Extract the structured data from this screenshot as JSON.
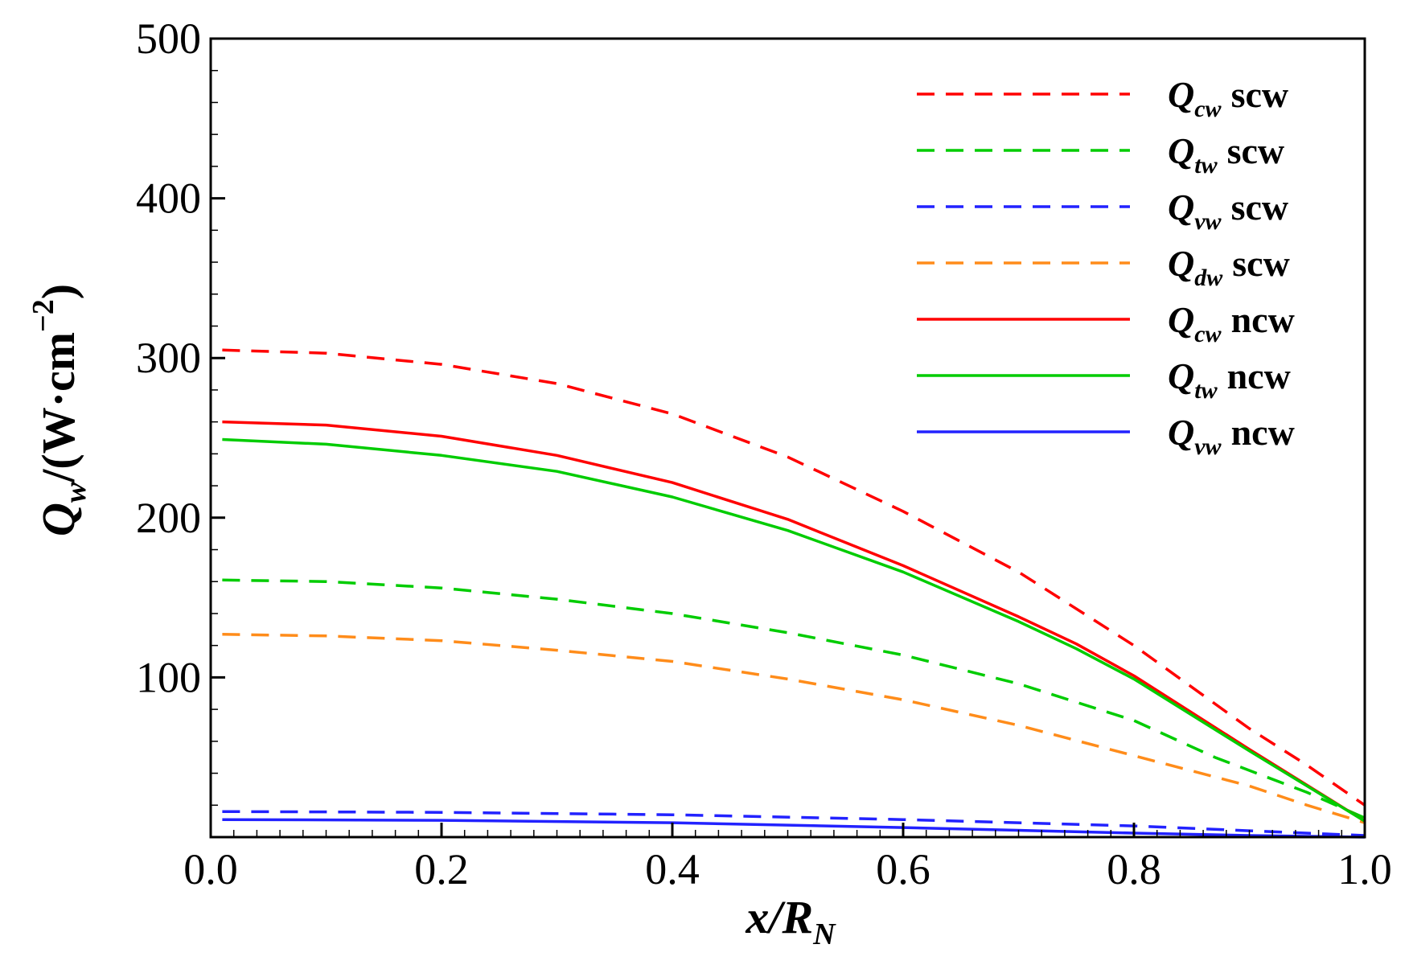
{
  "chart_data": {
    "type": "line",
    "xlabel_main": "x/R",
    "xlabel_sub": "N",
    "ylabel_q": "Q",
    "ylabel_sub": "w",
    "ylabel_unit": "/(W·cm",
    "ylabel_exp": "−2",
    "ylabel_close": ")",
    "xlim": [
      0.0,
      1.0
    ],
    "ylim": [
      0,
      500
    ],
    "x_ticks": [
      0.0,
      0.2,
      0.4,
      0.6,
      0.8,
      1.0
    ],
    "x_tick_labels": [
      "0.0",
      "0.2",
      "0.4",
      "0.6",
      "0.8",
      "1.0"
    ],
    "y_ticks": [
      100,
      200,
      300,
      400,
      500
    ],
    "y_tick_labels": [
      "100",
      "200",
      "300",
      "400",
      "500"
    ],
    "legend_position": "top-right",
    "series": [
      {
        "name": "Q_cw scw",
        "q": "Q",
        "sub": "cw",
        "tag": "scw",
        "color": "#ff0000",
        "style": "dashed",
        "x": [
          0.01,
          0.1,
          0.2,
          0.3,
          0.4,
          0.5,
          0.6,
          0.7,
          0.8,
          0.9,
          0.95,
          1.0
        ],
        "y": [
          305,
          303,
          296,
          284,
          265,
          238,
          204,
          166,
          120,
          68,
          45,
          20
        ]
      },
      {
        "name": "Q_tw scw",
        "q": "Q",
        "sub": "tw",
        "tag": "scw",
        "color": "#00cc00",
        "style": "dashed",
        "x": [
          0.01,
          0.1,
          0.2,
          0.3,
          0.4,
          0.5,
          0.6,
          0.7,
          0.8,
          0.87,
          0.95,
          1.0
        ],
        "y": [
          161,
          160,
          156,
          149,
          140,
          128,
          114,
          96,
          73,
          50,
          28,
          12
        ]
      },
      {
        "name": "Q_vw scw",
        "q": "Q",
        "sub": "vw",
        "tag": "scw",
        "color": "#2222ff",
        "style": "dashed",
        "x": [
          0.01,
          0.2,
          0.4,
          0.6,
          0.8,
          0.9,
          1.0
        ],
        "y": [
          16,
          15.5,
          14,
          11,
          7,
          4,
          1
        ]
      },
      {
        "name": "Q_dw scw",
        "q": "Q",
        "sub": "dw",
        "tag": "scw",
        "color": "#ff8c1a",
        "style": "dashed",
        "x": [
          0.01,
          0.1,
          0.2,
          0.3,
          0.4,
          0.5,
          0.6,
          0.7,
          0.8,
          0.9,
          0.95,
          1.0
        ],
        "y": [
          127,
          126,
          123,
          117,
          110,
          99,
          86,
          70,
          51,
          32,
          20,
          9
        ]
      },
      {
        "name": "Q_cw ncw",
        "q": "Q",
        "sub": "cw",
        "tag": "ncw",
        "color": "#ff0000",
        "style": "solid",
        "x": [
          0.01,
          0.1,
          0.2,
          0.3,
          0.4,
          0.5,
          0.6,
          0.7,
          0.75,
          0.8,
          0.9,
          1.0
        ],
        "y": [
          260,
          258,
          251,
          239,
          222,
          199,
          170,
          138,
          121,
          101,
          55,
          10
        ]
      },
      {
        "name": "Q_tw ncw",
        "q": "Q",
        "sub": "tw",
        "tag": "ncw",
        "color": "#00cc00",
        "style": "solid",
        "x": [
          0.01,
          0.1,
          0.2,
          0.3,
          0.4,
          0.5,
          0.6,
          0.7,
          0.75,
          0.8,
          0.9,
          1.0
        ],
        "y": [
          249,
          246,
          239,
          229,
          213,
          192,
          166,
          135,
          118,
          99,
          54,
          10
        ]
      },
      {
        "name": "Q_vw ncw",
        "q": "Q",
        "sub": "vw",
        "tag": "ncw",
        "color": "#2222ff",
        "style": "solid",
        "x": [
          0.01,
          0.2,
          0.4,
          0.6,
          0.8,
          0.9,
          1.0
        ],
        "y": [
          11,
          10.5,
          9,
          6,
          2.5,
          1,
          0
        ]
      }
    ]
  }
}
